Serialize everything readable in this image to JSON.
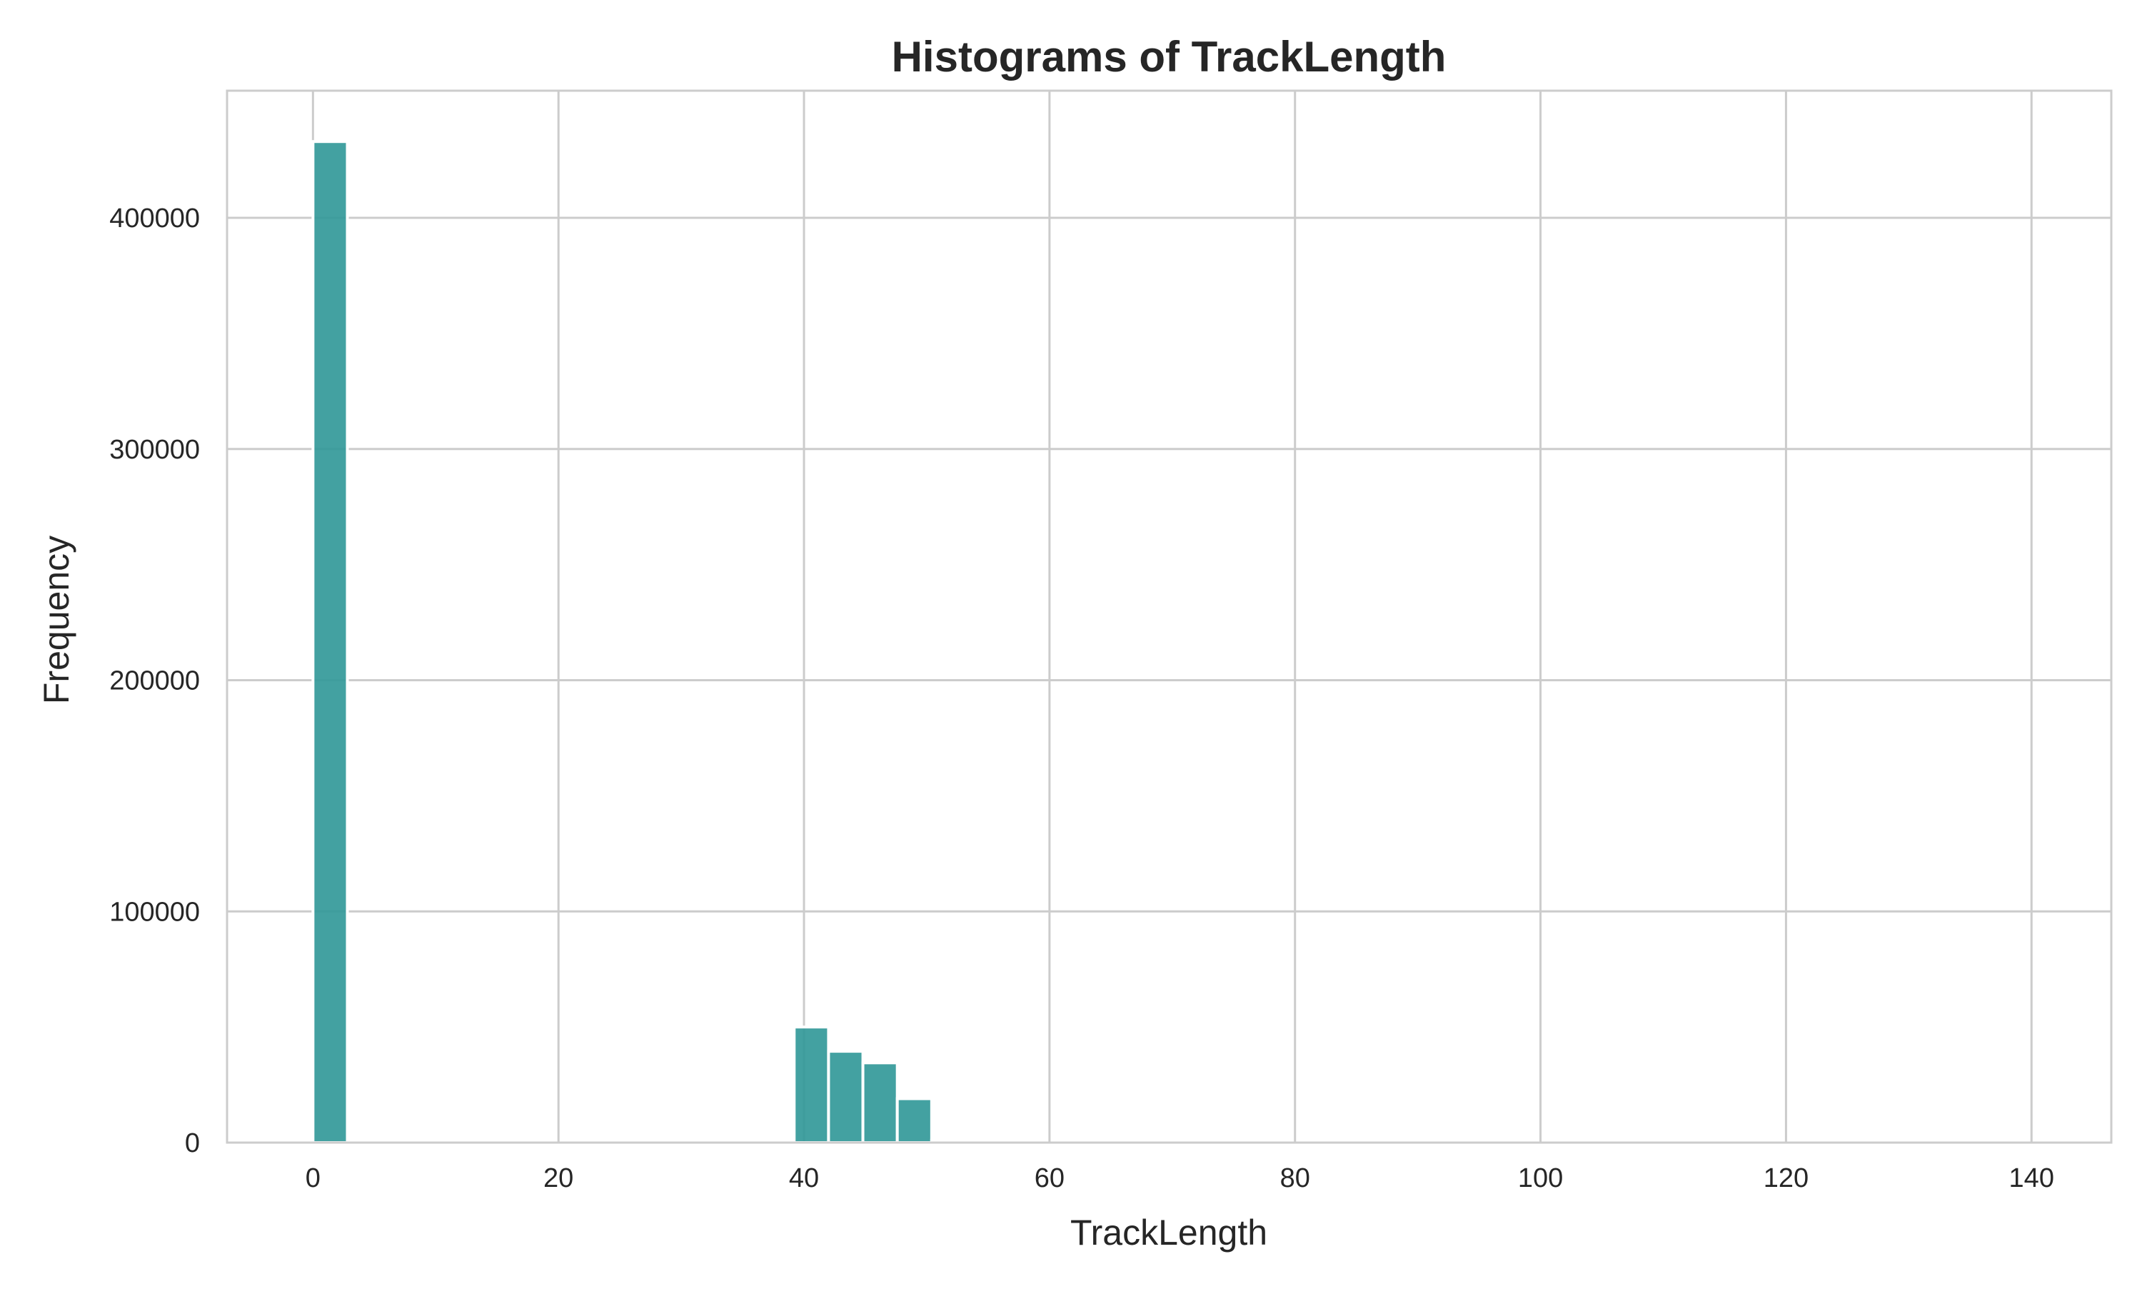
{
  "chart_data": {
    "type": "bar",
    "title": "Histograms of TrackLength",
    "xlabel": "TrackLength",
    "ylabel": "Frequency",
    "xlim": [
      -7,
      146.5
    ],
    "ylim": [
      0,
      455000
    ],
    "x_ticks": [
      0,
      20,
      40,
      60,
      80,
      100,
      120,
      140
    ],
    "y_ticks": [
      0,
      100000,
      200000,
      300000,
      400000
    ],
    "grid": true,
    "legend": "none",
    "colors": {
      "bar": "#339999",
      "grid": "#cccccc",
      "spine": "#cccccc",
      "text": "#262626"
    },
    "bins": [
      {
        "x0": 0,
        "x1": 2.8,
        "value": 433000
      },
      {
        "x0": 39.2,
        "x1": 42.0,
        "value": 50000
      },
      {
        "x0": 42.0,
        "x1": 44.8,
        "value": 39500
      },
      {
        "x0": 44.8,
        "x1": 47.6,
        "value": 34500
      },
      {
        "x0": 47.6,
        "x1": 50.4,
        "value": 19000
      },
      {
        "x0": 50.4,
        "x1": 53.2,
        "value": 1000
      }
    ]
  }
}
